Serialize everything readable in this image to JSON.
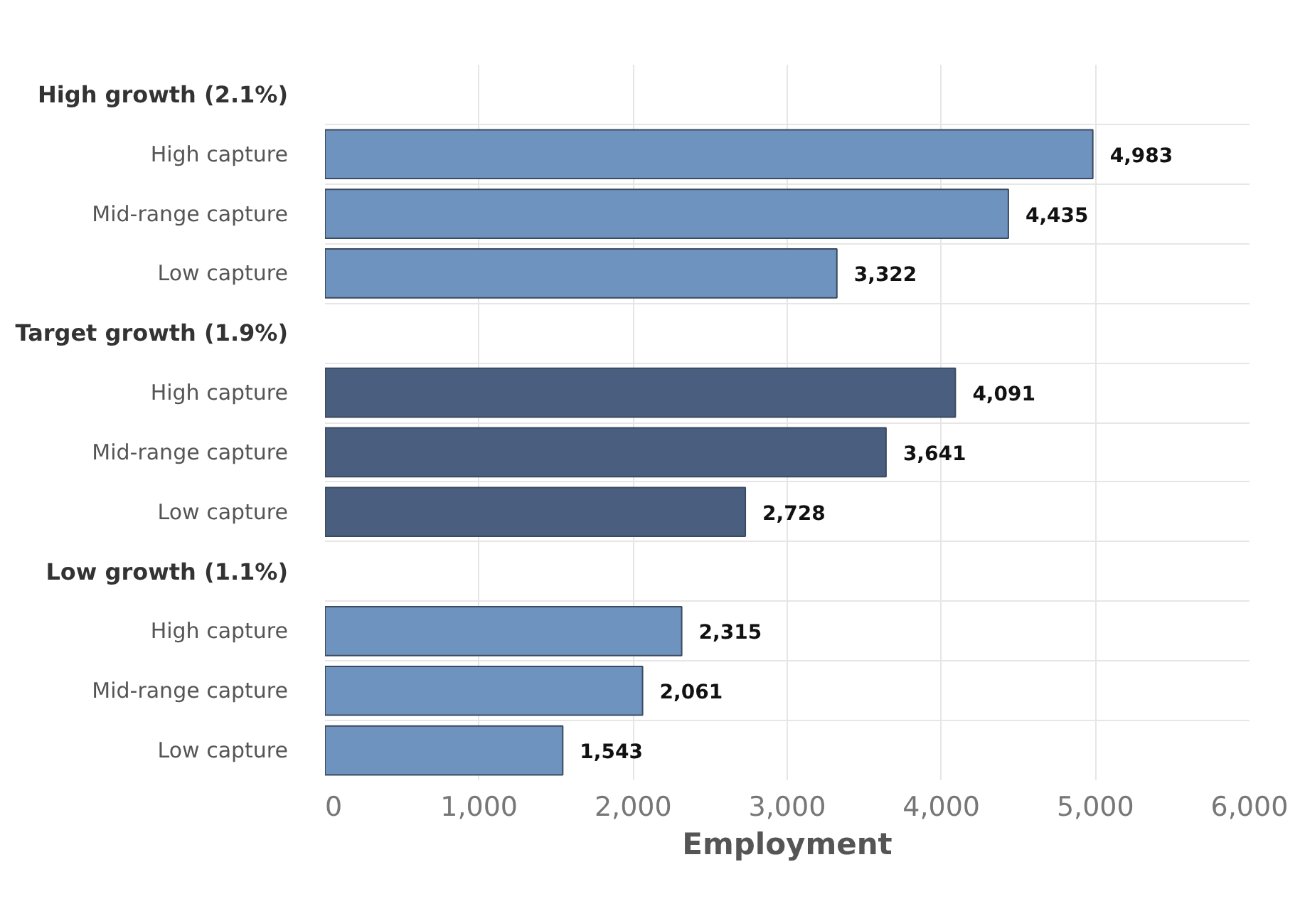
{
  "chart_data": {
    "type": "bar",
    "orientation": "horizontal",
    "xlabel": "Employment",
    "categories": [
      "High growth (2.1%)",
      "High capture",
      "Mid-range capture",
      "Low capture",
      "Target growth (1.9%)",
      "High capture",
      "Mid-range capture",
      "Low capture",
      "Low growth (1.1%)",
      "High capture",
      "Mid-range capture",
      "Low capture"
    ],
    "values": [
      null,
      4983,
      4435,
      3322,
      null,
      4091,
      3641,
      2728,
      null,
      2315,
      2061,
      1543
    ],
    "colors": [
      null,
      "#6f93bf",
      "#6f93bf",
      "#6f93bf",
      null,
      "#4a5f7f",
      "#4a5f7f",
      "#4a5f7f",
      null,
      "#6f93bf",
      "#6f93bf",
      "#6f93bf"
    ],
    "value_labels": [
      null,
      "4,983",
      "4,435",
      "3,322",
      null,
      "4,091",
      "3,641",
      "2,728",
      null,
      "2,315",
      "2,061",
      "1,543"
    ],
    "xlim": [
      0,
      6000
    ],
    "xticks": [
      0,
      {
        "value": 1000,
        "label": "1,000"
      },
      {
        "value": 2000,
        "label": "2,000"
      },
      {
        "value": 3000,
        "label": "3,000"
      },
      {
        "value": 4000,
        "label": "4,000"
      },
      {
        "value": 5000,
        "label": "5,000"
      },
      {
        "value": 6000,
        "label": "6,000"
      }
    ],
    "grid": true
  }
}
